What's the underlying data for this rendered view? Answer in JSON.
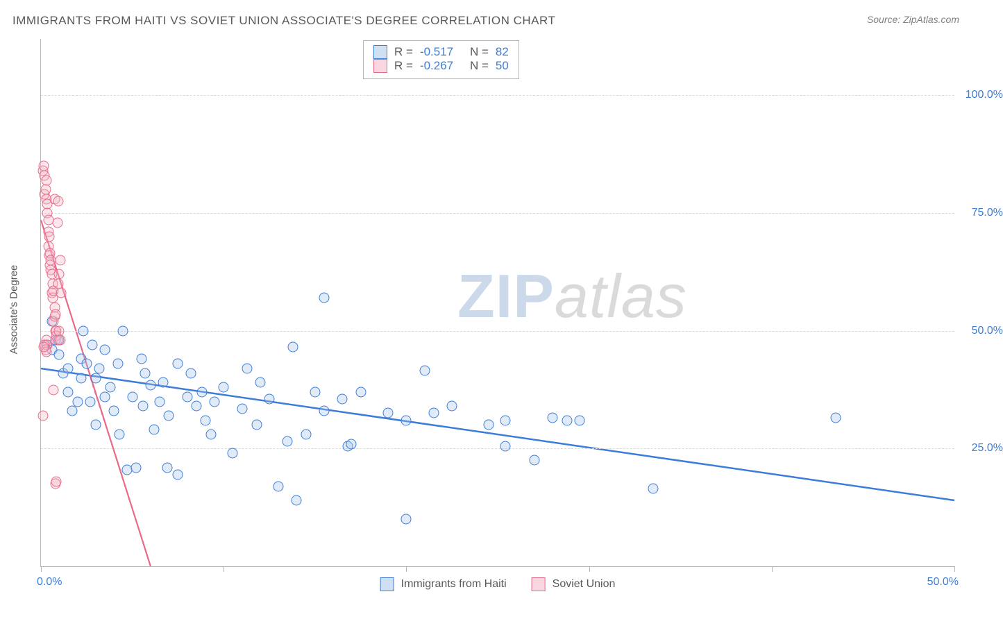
{
  "title": "IMMIGRANTS FROM HAITI VS SOVIET UNION ASSOCIATE'S DEGREE CORRELATION CHART",
  "source_label": "Source: ",
  "source_value": "ZipAtlas.com",
  "y_axis_label": "Associate's Degree",
  "watermark": {
    "part1": "ZIP",
    "part2": "atlas"
  },
  "chart": {
    "type": "scatter",
    "background_color": "#ffffff",
    "grid_color": "#d9d9d9",
    "axis_color": "#b5b5b5",
    "tick_label_color": "#3b7dd8",
    "text_color": "#595959",
    "xlim": [
      0,
      50
    ],
    "ylim": [
      0,
      112
    ],
    "x_ticks": [
      0,
      10,
      20,
      30,
      40,
      50
    ],
    "y_ticks": [
      25,
      50,
      75,
      100
    ],
    "x_tick_labels": {
      "0": "0.0%",
      "50": "50.0%"
    },
    "y_tick_labels": {
      "25": "25.0%",
      "50": "50.0%",
      "75": "75.0%",
      "100": "100.0%"
    },
    "marker_radius": 7.5,
    "marker_border_width": 1.5,
    "marker_fill_opacity": 0.35,
    "series": [
      {
        "name": "Immigrants from Haiti",
        "color": "#3b7dd8",
        "fill": "#a9c6ea",
        "trend": {
          "x1": 0,
          "y1": 42,
          "x2": 50,
          "y2": 14,
          "width": 2.5,
          "dash": ""
        },
        "points": [
          [
            0.3,
            47
          ],
          [
            0.6,
            46
          ],
          [
            0.6,
            52
          ],
          [
            0.8,
            48
          ],
          [
            1.0,
            48
          ],
          [
            1.0,
            45
          ],
          [
            1.2,
            41
          ],
          [
            1.5,
            42
          ],
          [
            1.5,
            37
          ],
          [
            1.7,
            33
          ],
          [
            2.0,
            35
          ],
          [
            2.2,
            40
          ],
          [
            2.2,
            44
          ],
          [
            2.3,
            50
          ],
          [
            2.5,
            43
          ],
          [
            2.7,
            35
          ],
          [
            2.8,
            47
          ],
          [
            3.0,
            30
          ],
          [
            3.0,
            40
          ],
          [
            3.2,
            42
          ],
          [
            3.5,
            36
          ],
          [
            3.5,
            46
          ],
          [
            3.8,
            38
          ],
          [
            4.0,
            33
          ],
          [
            4.2,
            43
          ],
          [
            4.3,
            28
          ],
          [
            4.5,
            50
          ],
          [
            4.7,
            20.5
          ],
          [
            5.0,
            36
          ],
          [
            5.2,
            21
          ],
          [
            5.5,
            44
          ],
          [
            5.6,
            34
          ],
          [
            5.7,
            41
          ],
          [
            6.0,
            38.5
          ],
          [
            6.2,
            29
          ],
          [
            6.5,
            35
          ],
          [
            6.7,
            39
          ],
          [
            6.9,
            21
          ],
          [
            7.0,
            32
          ],
          [
            7.5,
            43
          ],
          [
            7.5,
            19.5
          ],
          [
            8.0,
            36
          ],
          [
            8.2,
            41
          ],
          [
            8.5,
            34
          ],
          [
            8.8,
            37
          ],
          [
            9.0,
            31
          ],
          [
            9.3,
            28
          ],
          [
            9.5,
            35
          ],
          [
            10.0,
            38
          ],
          [
            10.5,
            24
          ],
          [
            11.0,
            33.5
          ],
          [
            11.3,
            42
          ],
          [
            11.8,
            30
          ],
          [
            12.0,
            39
          ],
          [
            12.5,
            35.5
          ],
          [
            13.0,
            17
          ],
          [
            13.5,
            26.5
          ],
          [
            13.8,
            46.5
          ],
          [
            14.0,
            14
          ],
          [
            14.5,
            28
          ],
          [
            15.0,
            37
          ],
          [
            15.5,
            33
          ],
          [
            15.5,
            57
          ],
          [
            16.5,
            35.5
          ],
          [
            16.8,
            25.5
          ],
          [
            17.0,
            26
          ],
          [
            17.5,
            37
          ],
          [
            19.0,
            32.5
          ],
          [
            20.0,
            10
          ],
          [
            20.0,
            31
          ],
          [
            21.0,
            41.5
          ],
          [
            21.5,
            32.5
          ],
          [
            22.5,
            34
          ],
          [
            24.5,
            30
          ],
          [
            25.4,
            25.5
          ],
          [
            25.4,
            31
          ],
          [
            27.0,
            22.5
          ],
          [
            28.0,
            31.5
          ],
          [
            28.8,
            31
          ],
          [
            29.5,
            31
          ],
          [
            33.5,
            16.5
          ],
          [
            43.5,
            31.5
          ]
        ]
      },
      {
        "name": "Soviet Union",
        "color": "#e86b8a",
        "fill": "#f3b6c6",
        "trend": {
          "x1": 0,
          "y1": 73.5,
          "x2": 6,
          "y2": 0,
          "width": 2.2,
          "dash": ""
        },
        "trend_ext": {
          "x1": 2.7,
          "y1": 40,
          "x2": 6,
          "y2": 0,
          "width": 1.2,
          "dash": "5,5"
        },
        "points": [
          [
            0.1,
            84
          ],
          [
            0.15,
            85
          ],
          [
            0.2,
            83
          ],
          [
            0.2,
            79
          ],
          [
            0.25,
            80
          ],
          [
            0.3,
            78
          ],
          [
            0.3,
            82
          ],
          [
            0.35,
            77
          ],
          [
            0.35,
            75
          ],
          [
            0.4,
            71
          ],
          [
            0.4,
            73.5
          ],
          [
            0.4,
            68
          ],
          [
            0.45,
            70
          ],
          [
            0.45,
            66
          ],
          [
            0.5,
            66.5
          ],
          [
            0.5,
            64
          ],
          [
            0.55,
            65
          ],
          [
            0.55,
            63
          ],
          [
            0.6,
            62
          ],
          [
            0.6,
            58
          ],
          [
            0.65,
            60
          ],
          [
            0.65,
            57
          ],
          [
            0.7,
            58.5
          ],
          [
            0.7,
            52
          ],
          [
            0.75,
            55
          ],
          [
            0.75,
            53
          ],
          [
            0.8,
            53.5
          ],
          [
            0.75,
            78
          ],
          [
            0.8,
            50
          ],
          [
            0.85,
            50
          ],
          [
            0.85,
            49
          ],
          [
            0.9,
            48
          ],
          [
            0.3,
            48
          ],
          [
            0.35,
            47
          ],
          [
            0.2,
            47
          ],
          [
            0.25,
            46
          ],
          [
            0.3,
            45.5
          ],
          [
            0.15,
            46.5
          ],
          [
            0.95,
            77.5
          ],
          [
            0.7,
            37.5
          ],
          [
            0.1,
            32
          ],
          [
            0.8,
            17.5
          ],
          [
            0.85,
            18
          ],
          [
            1.0,
            50
          ],
          [
            1.05,
            48
          ],
          [
            1.0,
            62
          ],
          [
            1.05,
            65
          ],
          [
            1.1,
            58
          ],
          [
            0.9,
            73
          ],
          [
            0.95,
            60
          ]
        ]
      }
    ],
    "stats_legend": {
      "rows": [
        {
          "swatch": 0,
          "r_label": "R =",
          "r_value": "-0.517",
          "n_label": "N =",
          "n_value": "82"
        },
        {
          "swatch": 1,
          "r_label": "R =",
          "r_value": "-0.267",
          "n_label": "N =",
          "n_value": "50"
        }
      ]
    }
  }
}
